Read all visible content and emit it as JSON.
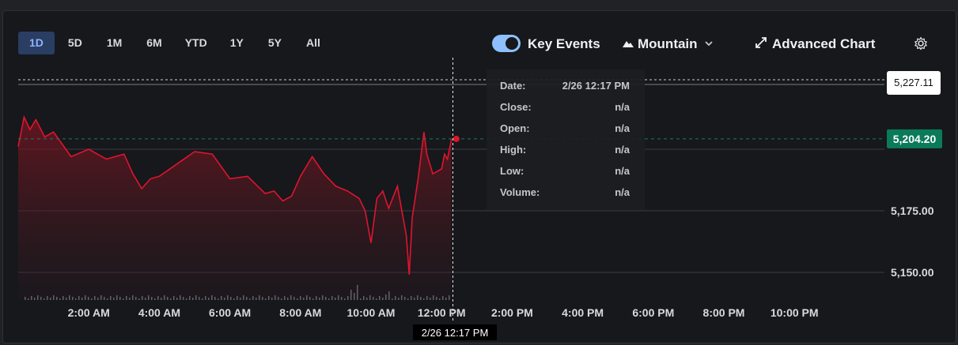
{
  "ranges": {
    "items": [
      "1D",
      "5D",
      "1M",
      "6M",
      "YTD",
      "1Y",
      "5Y",
      "All"
    ],
    "active": "1D"
  },
  "toolbar": {
    "key_events_label": "Key Events",
    "key_events_on": true,
    "chart_style_label": "Mountain",
    "advanced_chart_label": "Advanced Chart"
  },
  "crosshair": {
    "time_label": "2/26 12:17 PM",
    "price_label": "5,227.11"
  },
  "tooltip": {
    "rows": [
      {
        "label": "Date:",
        "value": "2/26 12:17 PM"
      },
      {
        "label": "Close:",
        "value": "n/a"
      },
      {
        "label": "Open:",
        "value": "n/a"
      },
      {
        "label": "High:",
        "value": "n/a"
      },
      {
        "label": "Low:",
        "value": "n/a"
      },
      {
        "label": "Volume:",
        "value": "n/a"
      }
    ]
  },
  "chart_data": {
    "type": "area",
    "series": [
      {
        "name": "",
        "points": [
          [
            "00:00",
            5201
          ],
          [
            "00:10",
            5213
          ],
          [
            "00:20",
            5208
          ],
          [
            "00:30",
            5212
          ],
          [
            "00:45",
            5205
          ],
          [
            "01:00",
            5207
          ],
          [
            "01:15",
            5202
          ],
          [
            "01:30",
            5197
          ],
          [
            "02:00",
            5200
          ],
          [
            "02:30",
            5196
          ],
          [
            "03:00",
            5198
          ],
          [
            "03:15",
            5190
          ],
          [
            "03:30",
            5184
          ],
          [
            "03:45",
            5188
          ],
          [
            "04:00",
            5189
          ],
          [
            "04:30",
            5194
          ],
          [
            "05:00",
            5199
          ],
          [
            "05:30",
            5198
          ],
          [
            "06:00",
            5188
          ],
          [
            "06:30",
            5189
          ],
          [
            "07:00",
            5182
          ],
          [
            "07:15",
            5183
          ],
          [
            "07:30",
            5179
          ],
          [
            "07:45",
            5181
          ],
          [
            "08:00",
            5189
          ],
          [
            "08:20",
            5197
          ],
          [
            "08:40",
            5190
          ],
          [
            "09:00",
            5185
          ],
          [
            "09:20",
            5183
          ],
          [
            "09:40",
            5180
          ],
          [
            "09:50",
            5175
          ],
          [
            "10:00",
            5162
          ],
          [
            "10:10",
            5180
          ],
          [
            "10:20",
            5183
          ],
          [
            "10:30",
            5176
          ],
          [
            "10:45",
            5185
          ],
          [
            "11:00",
            5165
          ],
          [
            "11:05",
            5149
          ],
          [
            "11:10",
            5172
          ],
          [
            "11:20",
            5188
          ],
          [
            "11:30",
            5207
          ],
          [
            "11:35",
            5198
          ],
          [
            "11:45",
            5190
          ],
          [
            "12:00",
            5192
          ],
          [
            "12:05",
            5198
          ],
          [
            "12:10",
            5196
          ],
          [
            "12:17",
            5204.2
          ]
        ]
      }
    ],
    "volume_bars": true,
    "x_ticks": [
      "2:00 AM",
      "4:00 AM",
      "6:00 AM",
      "8:00 AM",
      "10:00 AM",
      "12:00 PM",
      "2:00 PM",
      "4:00 PM",
      "6:00 PM",
      "8:00 PM",
      "10:00 PM"
    ],
    "y_ticks": [
      "5,150.00",
      "5,175.00"
    ],
    "last_price_label": "5,204.20",
    "reference_line": 5200,
    "ylim": [
      5140,
      5235
    ],
    "grid": true,
    "colors": {
      "line": "#e0142e",
      "last_price": "#0a7a5b",
      "grid": "#3a3d43",
      "tick": "#d7dade"
    }
  }
}
